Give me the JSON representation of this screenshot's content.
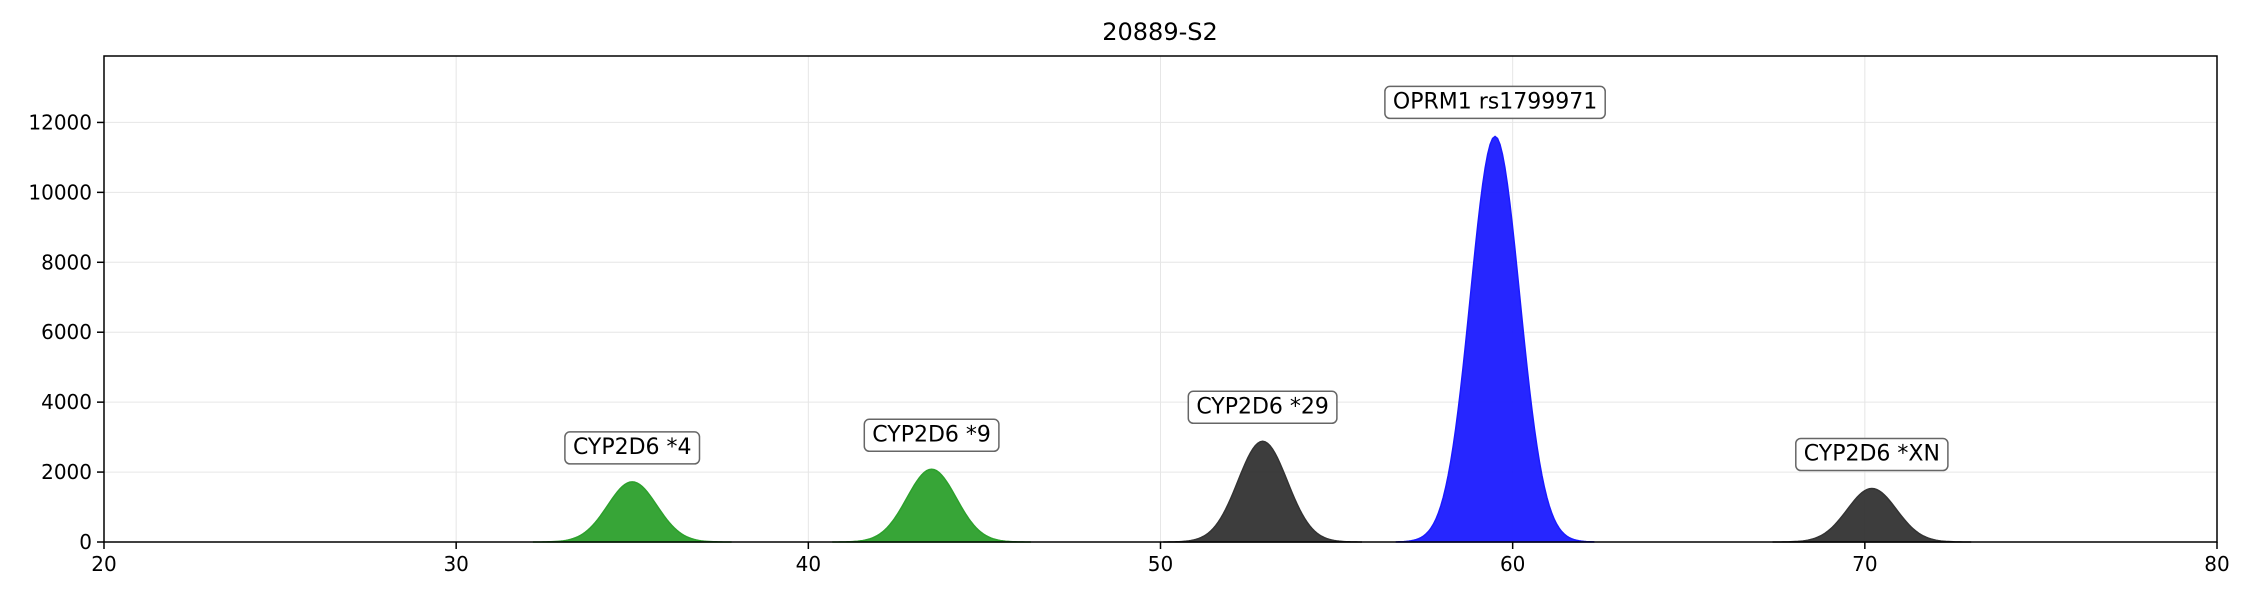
{
  "chart_data": {
    "type": "area",
    "title": "20889-S2",
    "xlabel": "",
    "ylabel": "",
    "xlim": [
      20,
      80
    ],
    "ylim": [
      0,
      13900
    ],
    "x_ticks": [
      20,
      30,
      40,
      50,
      60,
      70,
      80
    ],
    "y_ticks": [
      0,
      2000,
      4000,
      6000,
      8000,
      10000,
      12000
    ],
    "grid": true,
    "peaks": [
      {
        "label": "CYP2D6 *4",
        "center": 35.0,
        "height": 1720,
        "color": "#2ca02c"
      },
      {
        "label": "CYP2D6 *9",
        "center": 43.5,
        "height": 2080,
        "color": "#2ca02c"
      },
      {
        "label": "CYP2D6 *29",
        "center": 52.9,
        "height": 2880,
        "color": "#333333"
      },
      {
        "label": "OPRM1 rs1799971",
        "center": 59.5,
        "height": 11600,
        "color": "#1a1aff"
      },
      {
        "label": "CYP2D6 *XN",
        "center": 70.2,
        "height": 1530,
        "color": "#333333"
      }
    ]
  }
}
